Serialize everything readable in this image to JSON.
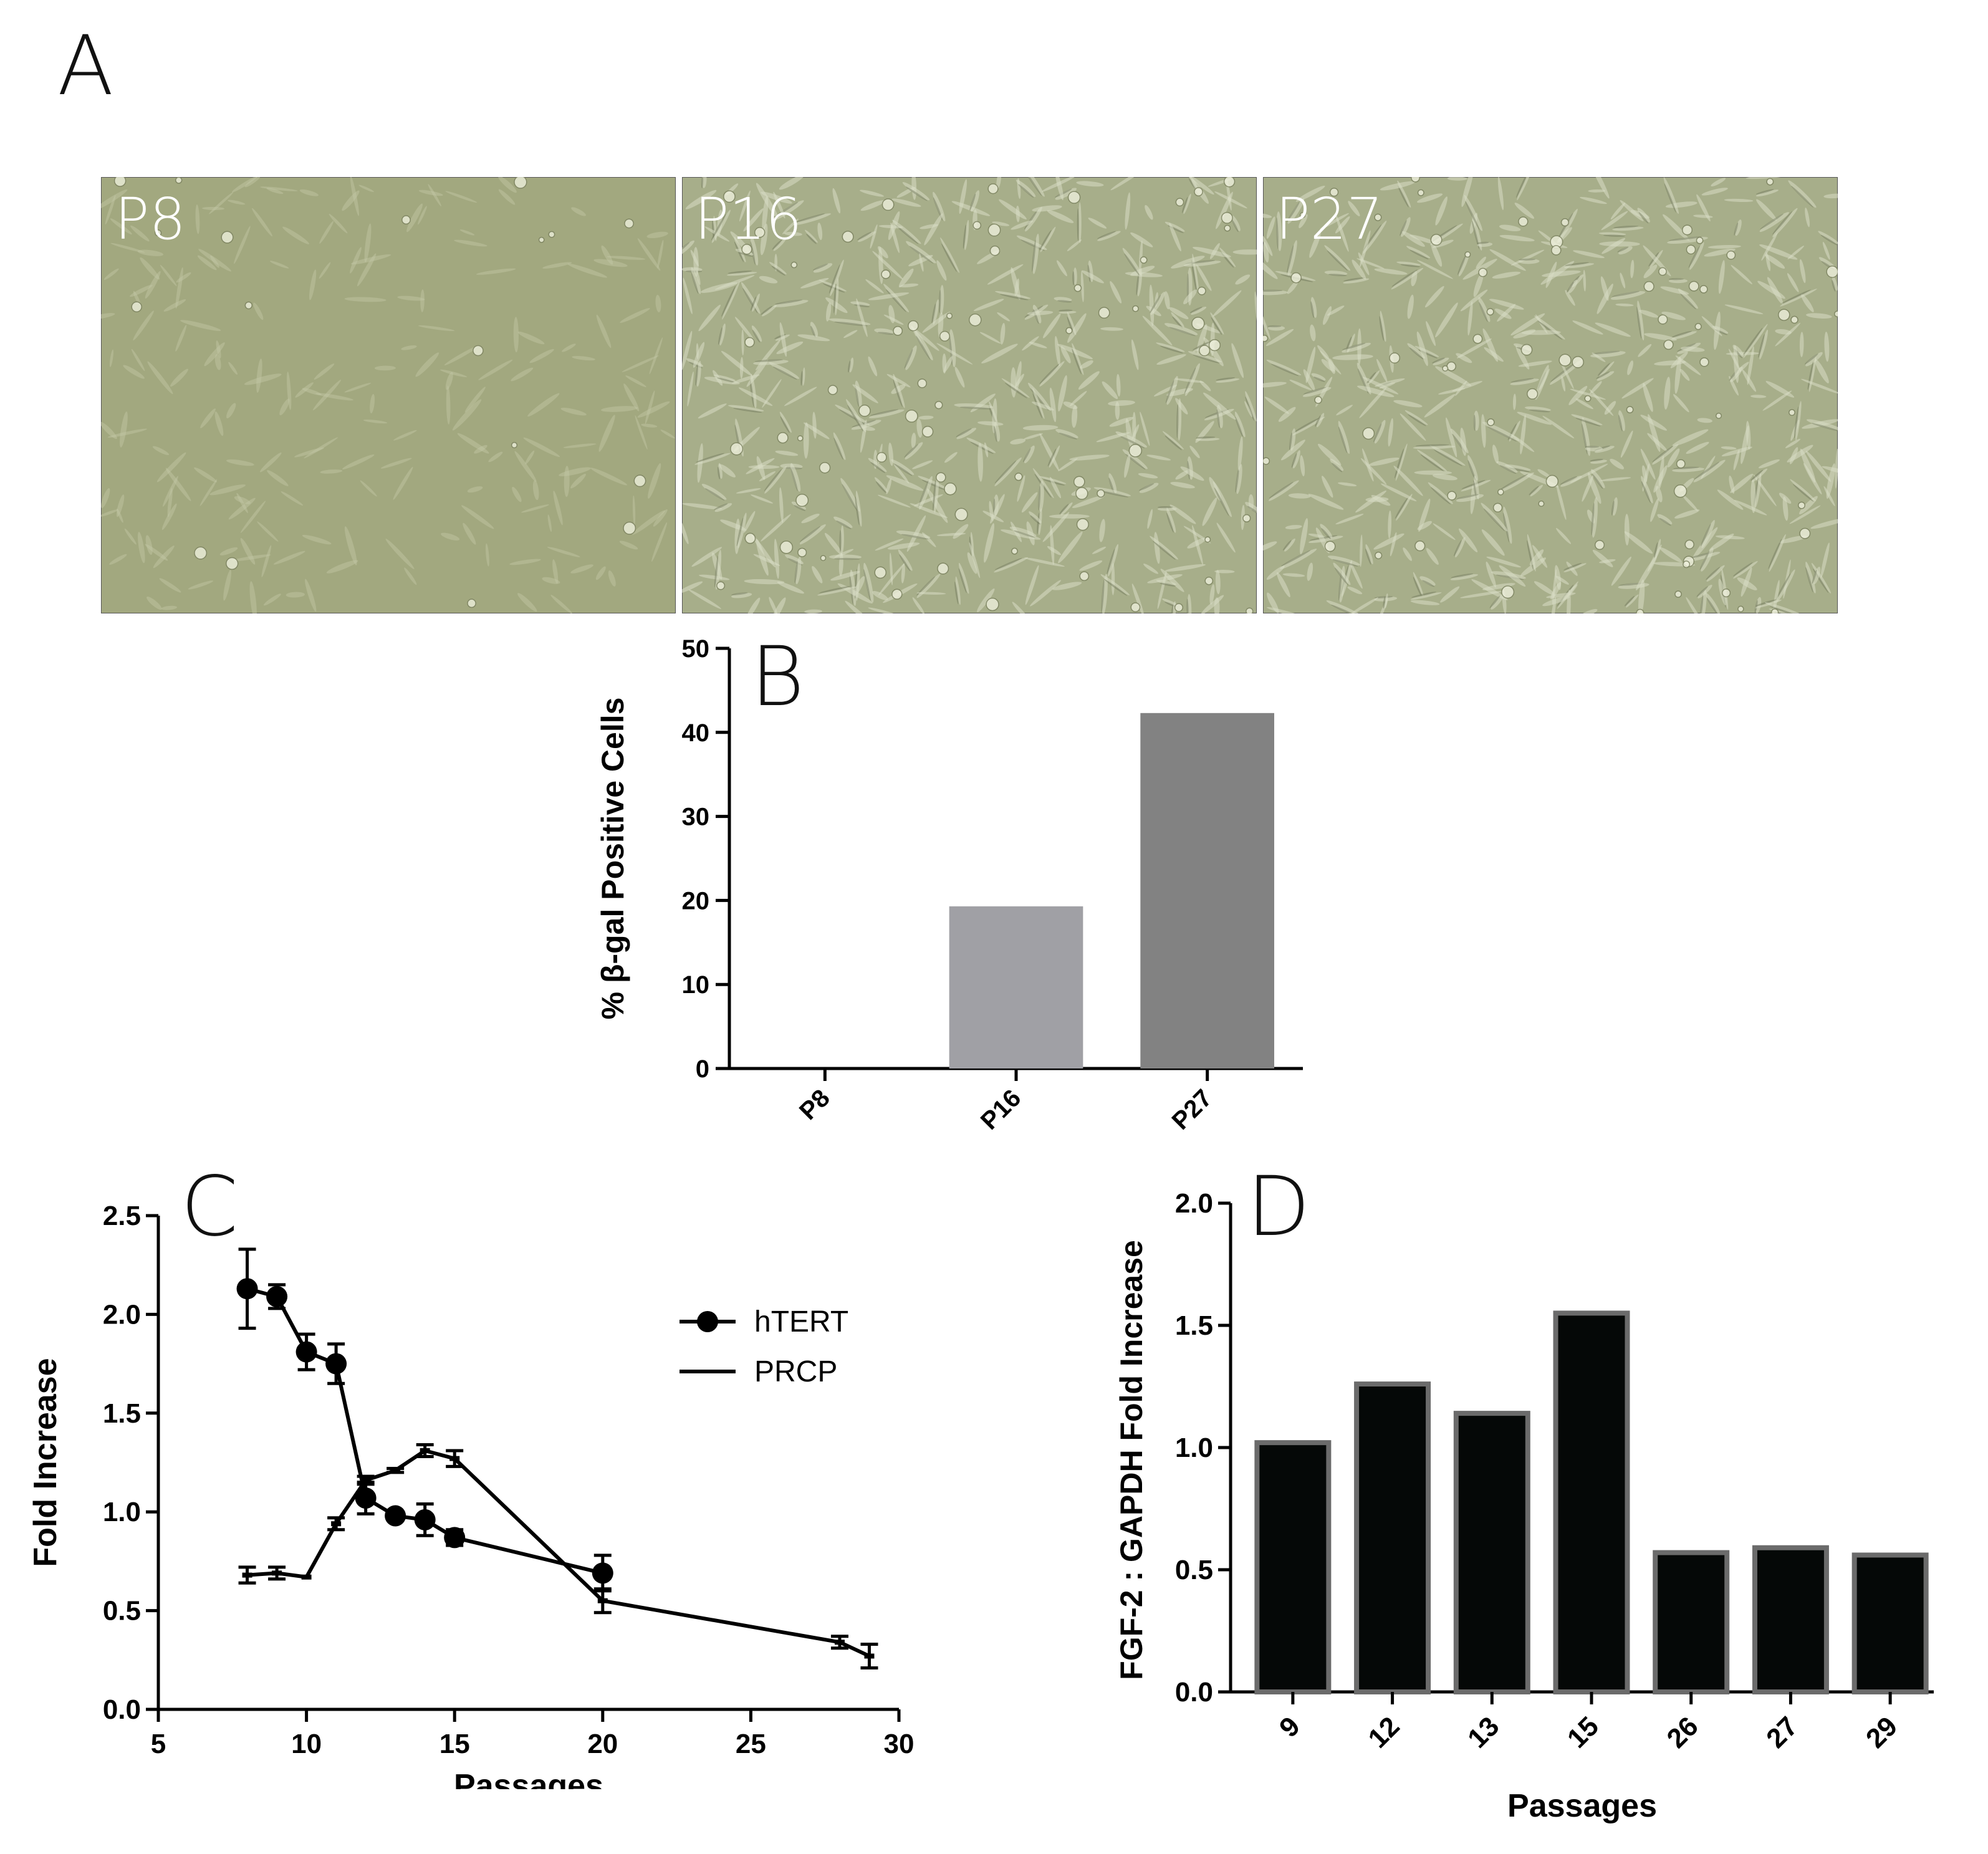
{
  "panels": {
    "a": "A",
    "b": "B",
    "c": "C",
    "d": "D"
  },
  "micrographs": [
    {
      "label": "P8",
      "density": "sparse"
    },
    {
      "label": "P16",
      "density": "dense"
    },
    {
      "label": "P27",
      "density": "dense"
    }
  ],
  "colors": {
    "micro_bg_sparse": "#a2a87f",
    "micro_bg_dense": "#a7ae8a",
    "bar_p16": "#a0a0a5",
    "bar_p27": "#828282",
    "bar_d_fill": "#050807",
    "bar_d_edge": "#6b6b6b"
  },
  "chart_data": [
    {
      "id": "B",
      "type": "bar",
      "ylabel": "% β-gal Positive Cells",
      "xlabel": "",
      "categories": [
        "P8",
        "P16",
        "P27"
      ],
      "values": [
        0,
        19.3,
        42.3
      ],
      "ylim": [
        0,
        50
      ],
      "yticks": [
        0,
        10,
        20,
        30,
        40,
        50
      ],
      "grid": false,
      "legend": "none"
    },
    {
      "id": "C",
      "type": "line",
      "xlabel": "Passages",
      "ylabel": "Fold Increase",
      "xlim": [
        5,
        30
      ],
      "ylim": [
        0,
        2.5
      ],
      "xticks": [
        5,
        10,
        15,
        20,
        25,
        30
      ],
      "yticks": [
        0.0,
        0.5,
        1.0,
        1.5,
        2.0,
        2.5
      ],
      "ytick_labels": [
        "0.0",
        "0.5",
        "1.0",
        "1.5",
        "2.0",
        "2.5"
      ],
      "grid": false,
      "legend": "right",
      "series": [
        {
          "name": "hTERT",
          "marker": "circle",
          "points": [
            {
              "x": 8,
              "y": 2.13,
              "err": 0.2
            },
            {
              "x": 9,
              "y": 2.09,
              "err": 0.06
            },
            {
              "x": 10,
              "y": 1.81,
              "err": 0.09
            },
            {
              "x": 11,
              "y": 1.75,
              "err": 0.1
            },
            {
              "x": 12,
              "y": 1.07,
              "err": 0.08
            },
            {
              "x": 13,
              "y": 0.98,
              "err": 0.02
            },
            {
              "x": 14,
              "y": 0.96,
              "err": 0.08
            },
            {
              "x": 15,
              "y": 0.87,
              "err": 0.04
            },
            {
              "x": 20,
              "y": 0.69,
              "err": 0.09
            }
          ]
        },
        {
          "name": "PRCP",
          "marker": "none",
          "points": [
            {
              "x": 8,
              "y": 0.68,
              "err": 0.04
            },
            {
              "x": 9,
              "y": 0.69,
              "err": 0.03
            },
            {
              "x": 10,
              "y": 0.67,
              "err": 0
            },
            {
              "x": 11,
              "y": 0.94,
              "err": 0.03
            },
            {
              "x": 12,
              "y": 1.16,
              "err": 0.02
            },
            {
              "x": 13,
              "y": 1.21,
              "err": 0.01
            },
            {
              "x": 14,
              "y": 1.31,
              "err": 0.03
            },
            {
              "x": 15,
              "y": 1.27,
              "err": 0.04
            },
            {
              "x": 20,
              "y": 0.55,
              "err": 0.06
            },
            {
              "x": 28,
              "y": 0.34,
              "err": 0.03
            },
            {
              "x": 29,
              "y": 0.27,
              "err": 0.06
            }
          ]
        }
      ]
    },
    {
      "id": "D",
      "type": "bar",
      "xlabel": "Passages",
      "ylabel": "FGF-2 : GAPDH Fold Increase",
      "categories": [
        "9",
        "12",
        "13",
        "15",
        "26",
        "27",
        "29"
      ],
      "values": [
        1.02,
        1.26,
        1.14,
        1.55,
        0.57,
        0.59,
        0.56
      ],
      "ylim": [
        0,
        2.0
      ],
      "yticks": [
        0.0,
        0.5,
        1.0,
        1.5,
        2.0
      ],
      "ytick_labels": [
        "0.0",
        "0.5",
        "1.0",
        "1.5",
        "2.0"
      ],
      "grid": false,
      "legend": "none"
    }
  ]
}
